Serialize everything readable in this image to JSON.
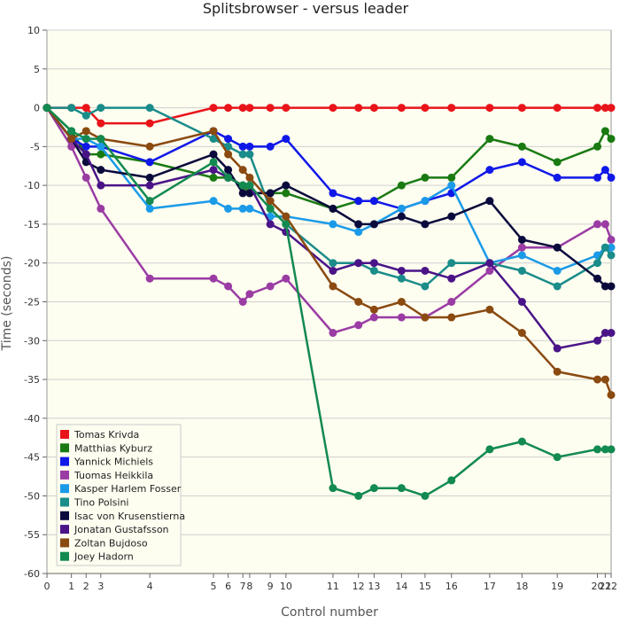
{
  "chart_data": {
    "type": "line",
    "title": "Splitsbrowser - versus leader",
    "xlabel": "Control number",
    "ylabel": "Time (seconds)",
    "ylim": [
      -60,
      10
    ],
    "yticks": [
      10,
      5,
      0,
      -5,
      -10,
      -15,
      -20,
      -25,
      -30,
      -35,
      -40,
      -45,
      -50,
      -55,
      -60
    ],
    "x": [
      0,
      1,
      2,
      3,
      4,
      5,
      6,
      7,
      8,
      9,
      10,
      11,
      12,
      13,
      14,
      15,
      16,
      17,
      18,
      19,
      20,
      21,
      22
    ],
    "x_positions": [
      0,
      2.5,
      4,
      5.5,
      10.5,
      17,
      18.5,
      20,
      20.7,
      22.8,
      24.4,
      29.2,
      31.8,
      33.4,
      36.2,
      38.6,
      41.3,
      45.2,
      48.5,
      52.1,
      56.2,
      57,
      57.6
    ],
    "x_tick_labels": [
      "0",
      "1",
      "2",
      "3",
      "4",
      "5",
      "6",
      "7",
      "8",
      "9",
      "10",
      "11",
      "12",
      "13",
      "14",
      "15",
      "16",
      "17",
      "18",
      "19",
      "20",
      "21",
      "22"
    ],
    "background": "#fdfdf0",
    "legend": {
      "position": "bottom-left"
    },
    "series": [
      {
        "name": "Tomas Krivda",
        "color": "#e8141a",
        "values": [
          0,
          0,
          0,
          -2,
          -2,
          0,
          0,
          0,
          0,
          0,
          0,
          0,
          0,
          0,
          0,
          0,
          0,
          0,
          0,
          0,
          0,
          0,
          0
        ]
      },
      {
        "name": "Matthias Kyburz",
        "color": "#1a7a12",
        "values": [
          0,
          -3,
          -6,
          -6,
          -7,
          -9,
          -9,
          -10,
          -11,
          -11,
          -11,
          -13,
          -12,
          -12,
          -10,
          -9,
          -9,
          -4,
          -5,
          -7,
          -5,
          -3,
          -4
        ]
      },
      {
        "name": "Yannick Michiels",
        "color": "#1018e8",
        "values": [
          0,
          -4,
          -5,
          -5,
          -7,
          -3,
          -4,
          -5,
          -5,
          -5,
          -4,
          -11,
          -12,
          -12,
          -13,
          -12,
          -11,
          -8,
          -7,
          -9,
          -9,
          -8,
          -9
        ]
      },
      {
        "name": "Tuomas Heikkila",
        "color": "#9a3ca4",
        "values": [
          0,
          -5,
          -9,
          -13,
          -22,
          -22,
          -23,
          -25,
          -24,
          -23,
          -22,
          -29,
          -28,
          -27,
          -27,
          -27,
          -25,
          -21,
          -18,
          -18,
          -15,
          -15,
          -17
        ]
      },
      {
        "name": "Kasper Harlem Fosser",
        "color": "#1b9ae8",
        "values": [
          0,
          -4,
          -4,
          -5,
          -13,
          -12,
          -13,
          -13,
          -13,
          -14,
          -14,
          -15,
          -16,
          -15,
          -13,
          -12,
          -10,
          -20,
          -19,
          -21,
          -19,
          -18,
          -18
        ]
      },
      {
        "name": "Tino Polsini",
        "color": "#1a8c8a",
        "values": [
          0,
          0,
          -1,
          0,
          0,
          -4,
          -5,
          -6,
          -6,
          -13,
          -15,
          -20,
          -20,
          -21,
          -22,
          -23,
          -20,
          -20,
          -21,
          -23,
          -20,
          -18,
          -19
        ]
      },
      {
        "name": "Isac von Krusenstierna",
        "color": "#0a0a3c",
        "values": [
          0,
          -4,
          -7,
          -8,
          -9,
          -6,
          -8,
          -11,
          -11,
          -11,
          -10,
          -13,
          -15,
          -15,
          -14,
          -15,
          -14,
          -12,
          -17,
          -18,
          -22,
          -23,
          -23
        ]
      },
      {
        "name": "Jonatan Gustafsson",
        "color": "#4a1488",
        "values": [
          0,
          -4,
          -6,
          -10,
          -10,
          -8,
          -9,
          -10,
          -10,
          -15,
          -16,
          -21,
          -20,
          -20,
          -21,
          -21,
          -22,
          -20,
          -25,
          -31,
          -30,
          -29,
          -29
        ]
      },
      {
        "name": "Zoltan Bujdoso",
        "color": "#8a4a10",
        "values": [
          0,
          -4,
          -3,
          -4,
          -5,
          -3,
          -6,
          -8,
          -9,
          -12,
          -14,
          -23,
          -25,
          -26,
          -25,
          -27,
          -27,
          -26,
          -29,
          -34,
          -35,
          -35,
          -37
        ]
      },
      {
        "name": "Joey Hadorn",
        "color": "#128a50",
        "values": [
          0,
          -3,
          -4,
          -4,
          -12,
          -7,
          -9,
          -10,
          -10,
          -13,
          -15,
          -49,
          -50,
          -49,
          -49,
          -50,
          -48,
          -44,
          -43,
          -45,
          -44,
          -44,
          -44
        ]
      }
    ]
  }
}
